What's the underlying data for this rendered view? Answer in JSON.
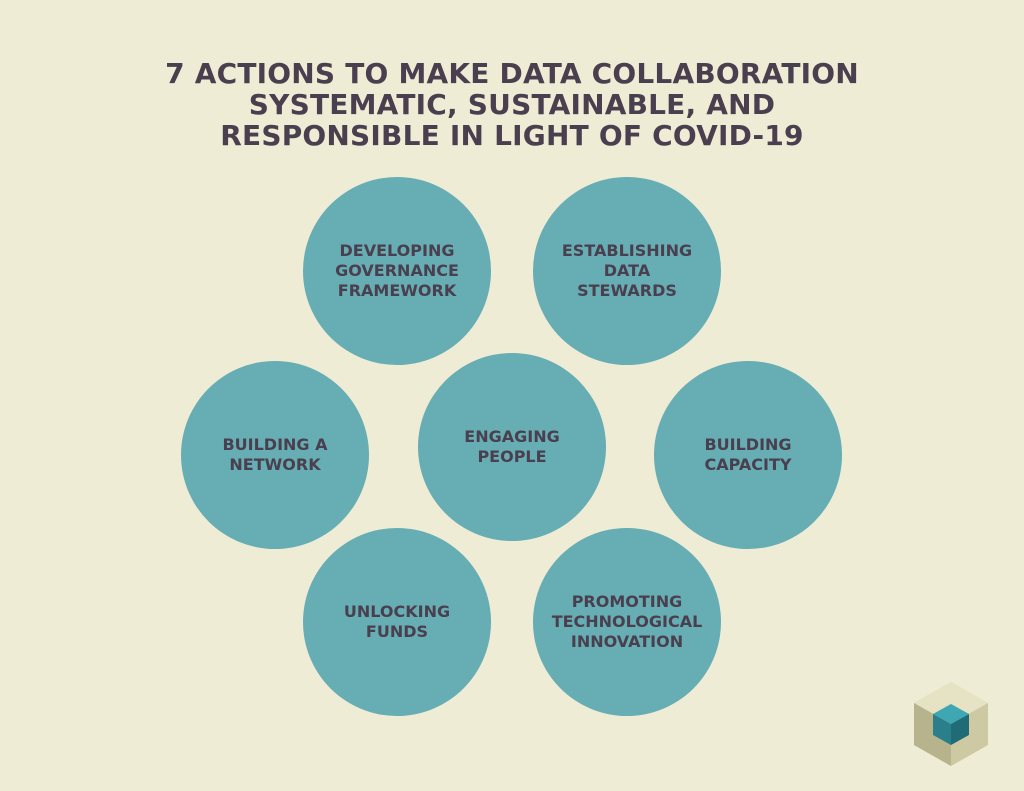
{
  "title": {
    "lines": [
      "7 ACTIONS TO MAKE DATA COLLABORATION",
      "SYSTEMATIC, SUSTAINABLE, AND",
      "RESPONSIBLE IN LIGHT OF COVID-19"
    ]
  },
  "actions": [
    {
      "lines": [
        "DEVELOPING",
        "GOVERNANCE",
        "FRAMEWORK"
      ]
    },
    {
      "lines": [
        "ESTABLISHING",
        "DATA",
        "STEWARDS"
      ]
    },
    {
      "lines": [
        "BUILDING A",
        "NETWORK"
      ]
    },
    {
      "lines": [
        "ENGAGING",
        "PEOPLE"
      ]
    },
    {
      "lines": [
        "BUILDING",
        "CAPACITY"
      ]
    },
    {
      "lines": [
        "UNLOCKING",
        "FUNDS"
      ]
    },
    {
      "lines": [
        "PROMOTING",
        "TECHNOLOGICAL",
        "INNOVATION"
      ]
    }
  ],
  "colors": {
    "background": "#efecd6",
    "circle": "#66adb4",
    "text": "#4a3f4e"
  },
  "logo": {
    "icon": "cube-logo-icon"
  }
}
